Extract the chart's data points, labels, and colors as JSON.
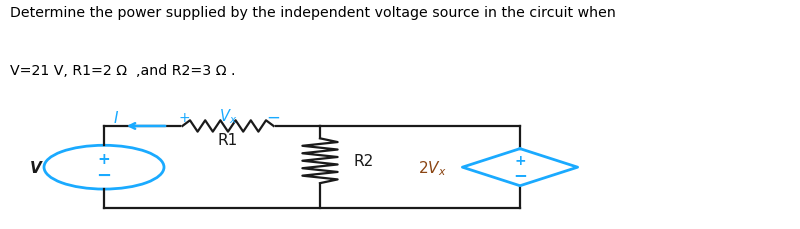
{
  "title_line1": "Determine the power supplied by the independent voltage source in the circuit when",
  "title_line2": "V=21 V, R1=2 Ω  ,and R2=3 Ω .",
  "bg_color_title": "#d4d4d4",
  "bg_color_main": "#ffffff",
  "circuit_color": "#1a1a1a",
  "blue_color": "#1aaaff",
  "brown_color": "#8B4513",
  "V_label": "V",
  "R1_label": "R1",
  "R2_label": "R2",
  "dep_source_label": "2V_x",
  "I_label": "I",
  "Vx_label": "V_x",
  "title_fontsize": 10.2,
  "circuit_lw": 1.6,
  "source_lw": 2.0
}
